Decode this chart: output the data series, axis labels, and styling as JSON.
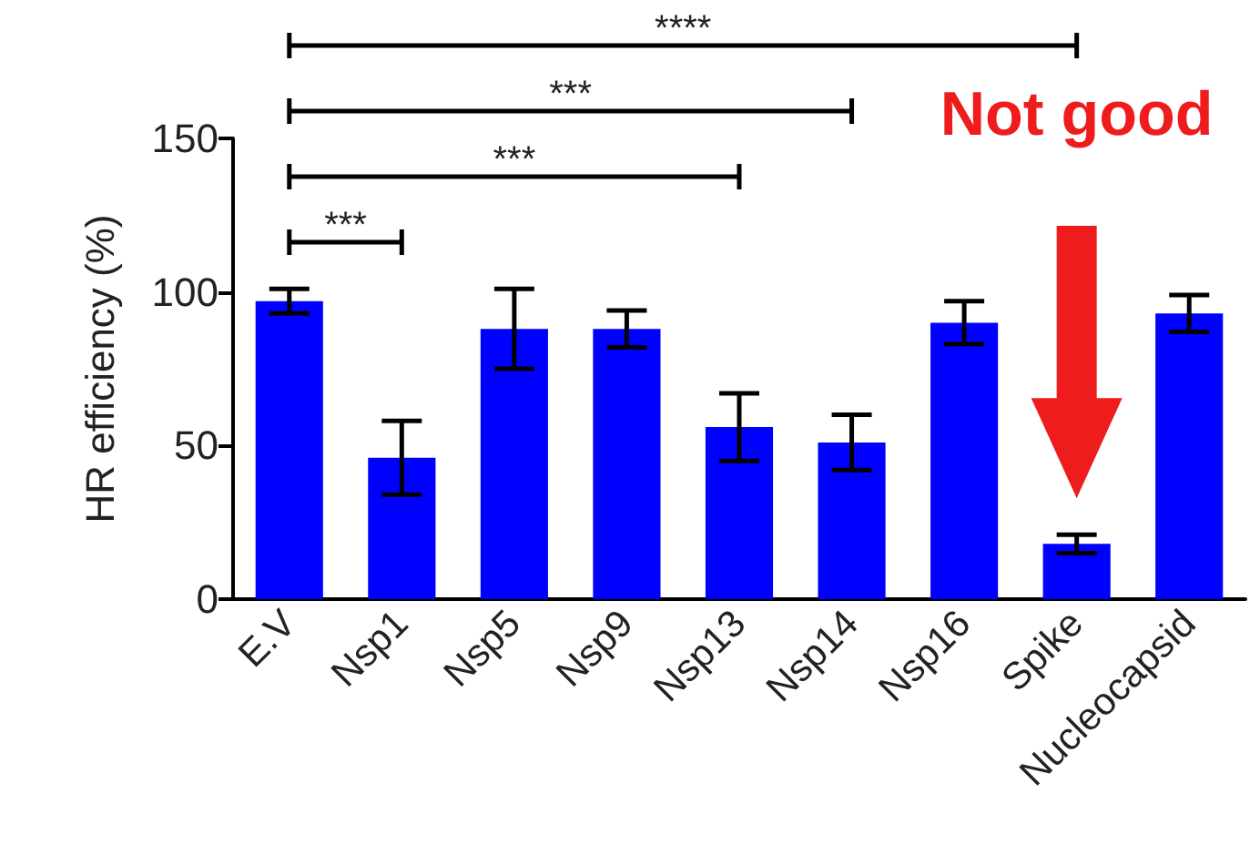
{
  "chart_data": {
    "type": "bar",
    "ylabel": "HR efficiency (%)",
    "categories": [
      "E.V",
      "Nsp1",
      "Nsp5",
      "Nsp9",
      "Nsp13",
      "Nsp14",
      "Nsp16",
      "Spike",
      "Nucleocapsid"
    ],
    "values": [
      97,
      46,
      88,
      88,
      56,
      51,
      90,
      18,
      93
    ],
    "errors": [
      4,
      12,
      13,
      6,
      11,
      9,
      7,
      3,
      6
    ],
    "color": "#0000ff",
    "ylim": [
      0,
      150
    ],
    "yticks": [
      0,
      50,
      100,
      150
    ],
    "grid": false,
    "annotations": [
      "****",
      "***",
      "***",
      "***",
      "Not good"
    ]
  }
}
